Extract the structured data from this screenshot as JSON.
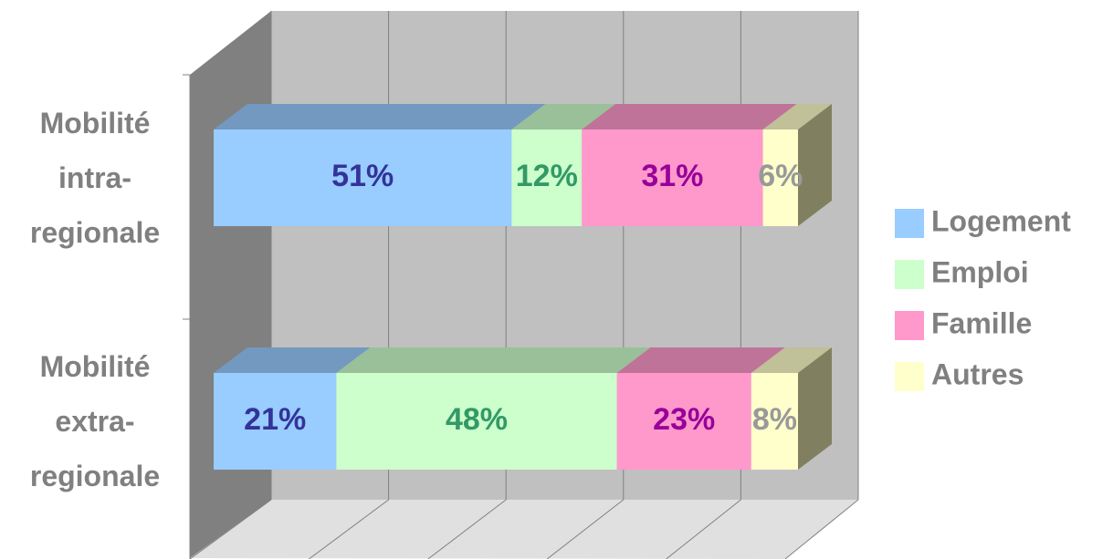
{
  "chart_data": {
    "type": "stacked-bar-3d",
    "categories": [
      "Mobilité intra-regionale",
      "Mobilité extra-regionale"
    ],
    "series": [
      {
        "name": "Logement",
        "color": "#99ccff",
        "top_color": "#7399c0",
        "label_color": "#333399",
        "values": [
          51,
          21
        ],
        "value_labels": [
          "51%",
          "21%"
        ]
      },
      {
        "name": "Emploi",
        "color": "#ccffcc",
        "top_color": "#99c099",
        "label_color": "#339966",
        "values": [
          12,
          48
        ],
        "value_labels": [
          "12%",
          "48%"
        ]
      },
      {
        "name": "Famille",
        "color": "#ff99cc",
        "top_color": "#c07399",
        "label_color": "#990099",
        "values": [
          31,
          23
        ],
        "value_labels": [
          "31%",
          "23%"
        ]
      },
      {
        "name": "Autres",
        "color": "#ffffcc",
        "top_color": "#c0c099",
        "label_color": "#999999",
        "values": [
          6,
          8
        ],
        "value_labels": [
          "6%",
          "8%"
        ]
      }
    ],
    "xlim": [
      0,
      100
    ],
    "xticks": [
      0,
      20,
      40,
      60,
      80,
      100
    ],
    "grid": true
  }
}
